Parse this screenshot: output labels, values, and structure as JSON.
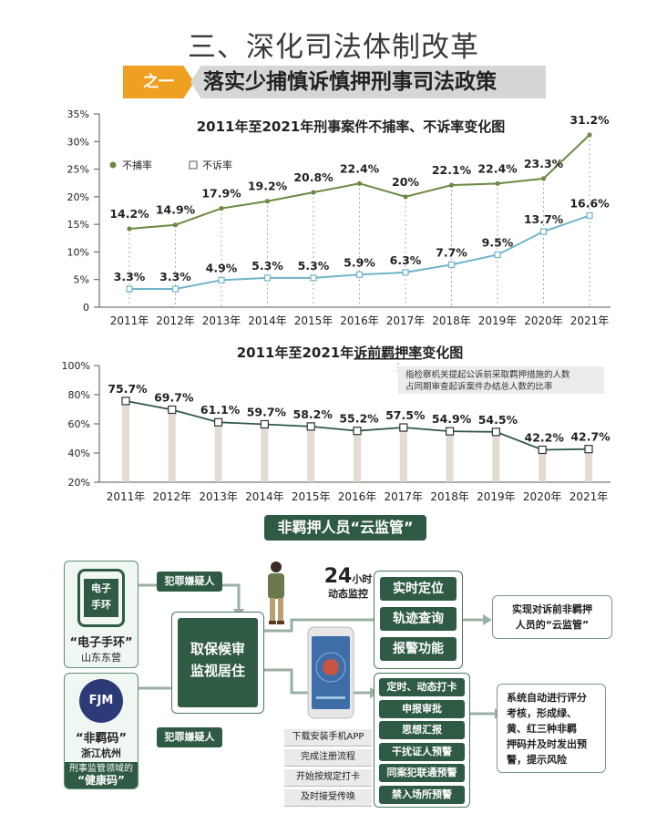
{
  "header": {
    "title": "三、深化司法体制改革",
    "tag": "之一",
    "subtitle": "落实少捕慎诉慎押刑事司法政策"
  },
  "colors": {
    "green_line": "#6b8a45",
    "blue_line": "#6fb4c8",
    "dark_green": "#2f5a43",
    "orange": "#f0a020"
  },
  "chart_data": [
    {
      "type": "line",
      "title": "2011年至2021年刑事案件不捕率、不诉率变化图",
      "categories": [
        "2011年",
        "2012年",
        "2013年",
        "2014年",
        "2015年",
        "2016年",
        "2017年",
        "2018年",
        "2019年",
        "2020年",
        "2021年"
      ],
      "series": [
        {
          "name": "不捕率",
          "values": [
            14.2,
            14.9,
            17.9,
            19.2,
            20.8,
            22.4,
            20,
            22.1,
            22.4,
            23.3,
            31.2
          ],
          "labels": [
            "14.2%",
            "14.9%",
            "17.9%",
            "19.2%",
            "20.8%",
            "22.4%",
            "20%",
            "22.1%",
            "22.4%",
            "23.3%",
            "31.2%"
          ]
        },
        {
          "name": "不诉率",
          "values": [
            3.3,
            3.3,
            4.9,
            5.3,
            5.3,
            5.9,
            6.3,
            7.7,
            9.5,
            13.7,
            16.6
          ],
          "labels": [
            "3.3%",
            "3.3%",
            "4.9%",
            "5.3%",
            "5.3%",
            "5.9%",
            "6.3%",
            "7.7%",
            "9.5%",
            "13.7%",
            "16.6%"
          ]
        }
      ],
      "y_ticks": [
        "0",
        "5%",
        "10%",
        "15%",
        "20%",
        "25%",
        "30%",
        "35%"
      ],
      "ylim": [
        0,
        35
      ],
      "legend": "top-left"
    },
    {
      "type": "line",
      "title_prefix": "2011年至2021年",
      "title_underlined": "诉前羁押率",
      "title_suffix": "变化图",
      "note_line1": "指检察机关提起公诉前采取羁押措施的人数",
      "note_line2": "占同期审查起诉案件办结总人数的比率",
      "categories": [
        "2011年",
        "2012年",
        "2013年",
        "2014年",
        "2015年",
        "2016年",
        "2017年",
        "2018年",
        "2019年",
        "2020年",
        "2021年"
      ],
      "series": [
        {
          "name": "诉前羁押率",
          "values": [
            75.7,
            69.7,
            61.1,
            59.7,
            58.2,
            55.2,
            57.5,
            54.9,
            54.5,
            42.2,
            42.7
          ],
          "labels": [
            "75.7%",
            "69.7%",
            "61.1%",
            "59.7%",
            "58.2%",
            "55.2%",
            "57.5%",
            "54.9%",
            "54.5%",
            "42.2%",
            "42.7%"
          ]
        }
      ],
      "y_ticks": [
        "20%",
        "40%",
        "60%",
        "80%",
        "100%"
      ],
      "ylim": [
        20,
        100
      ]
    }
  ],
  "flow": {
    "section_title": "非羁押人员“云监管”",
    "watch_label_line1": "电子",
    "watch_label_line2": "手环",
    "watch_name": "“电子手环”",
    "watch_place": "山东东营",
    "fjm_logo": "FJM",
    "fjm_name": "“非羁码”",
    "fjm_place": "浙江杭州",
    "fjm_note_line1": "刑事监管领域的",
    "fjm_note_line2": "“健康码”",
    "suspect_top": "犯罪嫌疑人",
    "suspect_bottom": "犯罪嫌疑人",
    "center_line1": "取保候审",
    "center_line2": "监视居住",
    "monitor_big": "24",
    "monitor_unit": "小时",
    "monitor_text": "动态监控",
    "top_functions": [
      "实时定位",
      "轨迹查询",
      "报警功能"
    ],
    "top_result_line1": "实现对诉前非羁押",
    "top_result_line2": "人员的“云监管”",
    "app_steps": [
      "下载安装手机APP",
      "完成注册流程",
      "开始按规定打卡",
      "及时接受传唤"
    ],
    "bottom_functions": [
      "定时、动态打卡",
      "申报审批",
      "思想汇报",
      "干扰证人预警",
      "同案犯联通预警",
      "禁入场所预警"
    ],
    "bottom_result_lines": [
      "系统自动进行评分",
      "考核，形成绿、",
      "黄、红三种非羁",
      "押码并及时发出预",
      "警，提示风险"
    ]
  }
}
